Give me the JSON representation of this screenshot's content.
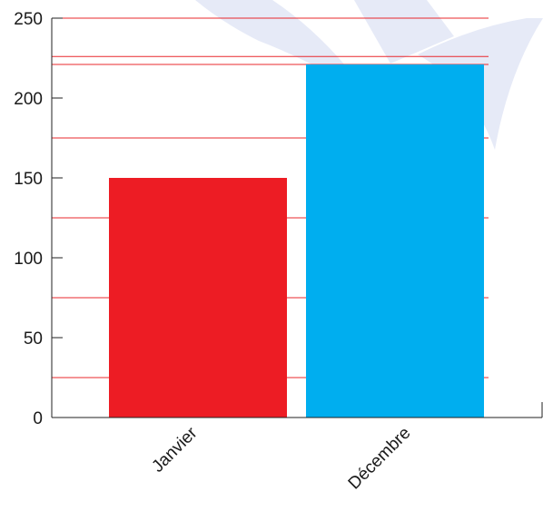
{
  "chart_data": {
    "type": "bar",
    "categories": [
      "Janvier",
      "Décembre"
    ],
    "values": [
      150,
      221
    ],
    "bar_colors": [
      "#ed1c24",
      "#00aeef"
    ],
    "ylim": [
      0,
      250
    ],
    "yticks": [
      0,
      50,
      100,
      150,
      200,
      250
    ],
    "ytick_labels": [
      "0",
      "50",
      "100",
      "150",
      "200",
      "250"
    ],
    "reference_lines": [
      25,
      75,
      125,
      175,
      221,
      226,
      250
    ],
    "reference_line_color": "#e8282e",
    "title": "",
    "xlabel": "",
    "ylabel": "",
    "grid": false,
    "watermark_color": "#e6eaf7"
  }
}
